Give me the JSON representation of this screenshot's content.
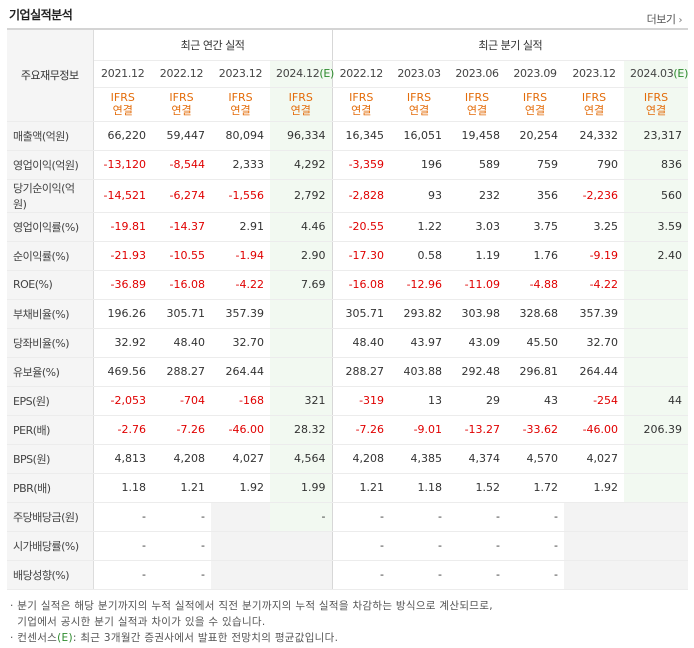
{
  "header": {
    "title": "기업실적분석",
    "more_label": "더보기"
  },
  "table": {
    "corner_label": "주요재무정보",
    "groups": {
      "annual": "최근 연간 실적",
      "quarterly": "최근 분기 실적"
    },
    "periods": [
      "2021.12",
      "2022.12",
      "2023.12",
      "2024.12",
      "2022.12",
      "2023.03",
      "2023.06",
      "2023.09",
      "2023.12",
      "2024.03"
    ],
    "period_2024_12_main": "2024.12",
    "period_2024_12_tag": "(E)",
    "period_2024_03_main": "2024.03",
    "period_2024_03_tag": "(E)",
    "basis_line1": "IFRS",
    "basis_line2": "연결",
    "rows": [
      {
        "label": "매출액(억원)",
        "values": [
          "66,220",
          "59,447",
          "80,094",
          "96,334",
          "16,345",
          "16,051",
          "19,458",
          "20,254",
          "24,332",
          "23,317"
        ]
      },
      {
        "label": "영업이익(억원)",
        "values": [
          "-13,120",
          "-8,544",
          "2,333",
          "4,292",
          "-3,359",
          "196",
          "589",
          "759",
          "790",
          "836"
        ]
      },
      {
        "label": "당기순이익(억원)",
        "values": [
          "-14,521",
          "-6,274",
          "-1,556",
          "2,792",
          "-2,828",
          "93",
          "232",
          "356",
          "-2,236",
          "560"
        ]
      },
      {
        "label": "영업이익률(%)",
        "values": [
          "-19.81",
          "-14.37",
          "2.91",
          "4.46",
          "-20.55",
          "1.22",
          "3.03",
          "3.75",
          "3.25",
          "3.59"
        ]
      },
      {
        "label": "순이익률(%)",
        "values": [
          "-21.93",
          "-10.55",
          "-1.94",
          "2.90",
          "-17.30",
          "0.58",
          "1.19",
          "1.76",
          "-9.19",
          "2.40"
        ]
      },
      {
        "label": "ROE(%)",
        "values": [
          "-36.89",
          "-16.08",
          "-4.22",
          "7.69",
          "-16.08",
          "-12.96",
          "-11.09",
          "-4.88",
          "-4.22",
          ""
        ]
      },
      {
        "label": "부채비율(%)",
        "values": [
          "196.26",
          "305.71",
          "357.39",
          "",
          "305.71",
          "293.82",
          "303.98",
          "328.68",
          "357.39",
          ""
        ]
      },
      {
        "label": "당좌비율(%)",
        "values": [
          "32.92",
          "48.40",
          "32.70",
          "",
          "48.40",
          "43.97",
          "43.09",
          "45.50",
          "32.70",
          ""
        ]
      },
      {
        "label": "유보율(%)",
        "values": [
          "469.56",
          "288.27",
          "264.44",
          "",
          "288.27",
          "403.88",
          "292.48",
          "296.81",
          "264.44",
          ""
        ]
      },
      {
        "label": "EPS(원)",
        "values": [
          "-2,053",
          "-704",
          "-168",
          "321",
          "-319",
          "13",
          "29",
          "43",
          "-254",
          "44"
        ]
      },
      {
        "label": "PER(배)",
        "values": [
          "-2.76",
          "-7.26",
          "-46.00",
          "28.32",
          "-7.26",
          "-9.01",
          "-13.27",
          "-33.62",
          "-46.00",
          "206.39"
        ]
      },
      {
        "label": "BPS(원)",
        "values": [
          "4,813",
          "4,208",
          "4,027",
          "4,564",
          "4,208",
          "4,385",
          "4,374",
          "4,570",
          "4,027",
          ""
        ]
      },
      {
        "label": "PBR(배)",
        "values": [
          "1.18",
          "1.21",
          "1.92",
          "1.99",
          "1.21",
          "1.18",
          "1.52",
          "1.72",
          "1.92",
          ""
        ]
      },
      {
        "label": "주당배당금(원)",
        "values": [
          "-",
          "-",
          "",
          "-",
          "-",
          "-",
          "-",
          "-",
          "",
          ""
        ]
      },
      {
        "label": "시가배당률(%)",
        "values": [
          "-",
          "-",
          "",
          "",
          "-",
          "-",
          "-",
          "-",
          "",
          ""
        ]
      },
      {
        "label": "배당성향(%)",
        "values": [
          "-",
          "-",
          "",
          "",
          "-",
          "-",
          "-",
          "-",
          "",
          ""
        ]
      }
    ]
  },
  "notes": {
    "line1": "· 분기 실적은 해당 분기까지의 누적 실적에서 직전 분기까지의 누적 실적을 차감하는 방식으로 계산되므로,",
    "line2": "  기업에서 공시한 분기 실적과 차이가 있을 수 있습니다.",
    "line3_prefix": "· 컨센서스",
    "line3_mark": "(E)",
    "line3_suffix": ": 최근 3개월간 증권사에서 발표한 전망치의 평균값입니다."
  },
  "colors": {
    "negative": "#e00000",
    "ifrs": "#e36c0a",
    "estimate_bg": "#f2f9f1",
    "estimate_tag": "#2e8b2e"
  }
}
